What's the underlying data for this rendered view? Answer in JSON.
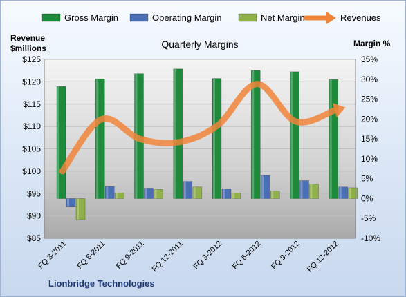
{
  "chart_data": {
    "type": "bar",
    "title": "Quarterly Margins",
    "company": "Lionbridge Technologies",
    "left_axis": {
      "label_line1": "Revenue",
      "label_line2": "$millions",
      "range": [
        85,
        125
      ],
      "step": 5,
      "prefix": "$"
    },
    "right_axis": {
      "label": "Margin %",
      "range": [
        -10,
        35
      ],
      "step": 5,
      "suffix": "%"
    },
    "categories": [
      "FQ 3-2011",
      "FQ 6-2011",
      "FQ 9-2011",
      "FQ 12-2011",
      "FQ 3-2012",
      "FQ 6-2012",
      "FQ 9-2012",
      "FQ 12-2012"
    ],
    "series": [
      {
        "name": "Gross Margin",
        "type": "bar",
        "axis": "right",
        "color": "#1e8a3c",
        "values": [
          28.2,
          30.1,
          31.4,
          32.6,
          30.2,
          32.2,
          31.9,
          29.9
        ]
      },
      {
        "name": "Operating Margin",
        "type": "bar",
        "axis": "right",
        "color": "#4a6fb5",
        "values": [
          -2.0,
          3.0,
          2.6,
          4.3,
          2.4,
          5.8,
          4.5,
          2.9
        ]
      },
      {
        "name": "Net Margin",
        "type": "bar",
        "axis": "right",
        "color": "#8fb04a",
        "values": [
          -5.3,
          1.4,
          2.3,
          2.9,
          1.4,
          1.9,
          3.6,
          2.7
        ]
      },
      {
        "name": "Revenues",
        "type": "line",
        "axis": "left",
        "color": "#f0853a",
        "values": [
          100.0,
          111.6,
          107.2,
          106.5,
          110.3,
          119.5,
          111.1,
          113.6
        ]
      }
    ],
    "grid": true,
    "legend_position": "top"
  }
}
